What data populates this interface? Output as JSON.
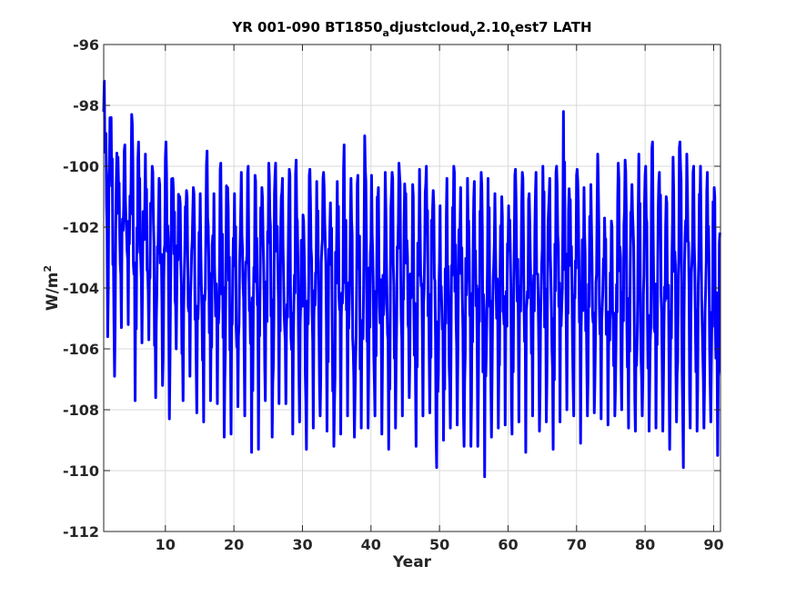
{
  "colors": {
    "series": "#0000ff",
    "grid": "#d9d9d9",
    "axis": "#262626",
    "background": "#ffffff"
  },
  "chart_data": {
    "type": "line",
    "title": {
      "part1": "YR 001-090 BT1850",
      "sub1": "a",
      "part2": "djustcloud",
      "sub2": "v",
      "part3": "2.10",
      "sub3": "t",
      "part4": "est7 LATH"
    },
    "xlabel": "Year",
    "ylabel": {
      "base": "W/m",
      "sup": "2"
    },
    "xlim": [
      1,
      91
    ],
    "ylim": [
      -112,
      -96
    ],
    "xticks": [
      10,
      20,
      30,
      40,
      50,
      60,
      70,
      80,
      90
    ],
    "yticks": [
      -112,
      -110,
      -108,
      -106,
      -104,
      -102,
      -100,
      -98,
      -96
    ],
    "xtick_labels": [
      "10",
      "20",
      "30",
      "40",
      "50",
      "60",
      "70",
      "80",
      "90"
    ],
    "ytick_labels": [
      "-112",
      "-110",
      "-108",
      "-106",
      "-104",
      "-102",
      "-100",
      "-98",
      "-96"
    ],
    "grid": true,
    "series": [
      {
        "sampling": "monthly",
        "annual_max": [
          -97.2,
          -98.4,
          -99.7,
          -99.3,
          -98.3,
          -99.2,
          -99.6,
          -100.0,
          -100.4,
          -99.2,
          -100.4,
          -101.0,
          -100.8,
          -100.7,
          -100.9,
          -99.5,
          -100.9,
          -99.9,
          -100.7,
          -100.9,
          -100.2,
          -100.0,
          -100.3,
          -100.7,
          -99.9,
          -99.9,
          -100.4,
          -100.1,
          -99.8,
          -101.6,
          -100.1,
          -100.5,
          -100.2,
          -101.2,
          -100.5,
          -99.3,
          -100.4,
          -100.3,
          -99.0,
          -100.3,
          -100.7,
          -100.2,
          -100.2,
          -99.9,
          -100.9,
          -100.6,
          -100.1,
          -100.0,
          -100.8,
          -101.3,
          -100.4,
          -100.0,
          -100.7,
          -100.4,
          -100.5,
          -100.2,
          -100.4,
          -100.9,
          -101.0,
          -101.3,
          -100.1,
          -100.2,
          -100.9,
          -100.2,
          -100.0,
          -100.4,
          -100.0,
          -98.2,
          -101.1,
          -100.1,
          -100.7,
          -100.6,
          -99.6,
          -101.7,
          -101.8,
          -99.9,
          -99.8,
          -100.6,
          -99.6,
          -100.0,
          -99.2,
          -100.2,
          -101.0,
          -99.7,
          -99.2,
          -99.6,
          -100.0,
          -100.0,
          -100.2,
          -100.7
        ],
        "annual_min": [
          -105.6,
          -106.9,
          -105.3,
          -105.2,
          -107.7,
          -105.8,
          -105.7,
          -107.6,
          -107.2,
          -108.3,
          -106.0,
          -107.7,
          -106.9,
          -108.1,
          -108.4,
          -107.7,
          -107.8,
          -108.9,
          -108.8,
          -107.9,
          -108.2,
          -109.4,
          -109.3,
          -107.7,
          -108.9,
          -107.8,
          -107.8,
          -108.8,
          -108.4,
          -109.3,
          -108.6,
          -108.2,
          -108.7,
          -109.2,
          -108.8,
          -108.2,
          -108.9,
          -108.6,
          -108.6,
          -108.2,
          -108.8,
          -109.3,
          -108.6,
          -108.2,
          -107.6,
          -109.2,
          -108.2,
          -108.1,
          -109.9,
          -109.0,
          -108.6,
          -108.5,
          -109.2,
          -109.2,
          -109.2,
          -110.2,
          -108.9,
          -108.6,
          -108.5,
          -108.8,
          -108.4,
          -109.4,
          -108.2,
          -108.7,
          -108.4,
          -109.3,
          -108.4,
          -108.0,
          -108.2,
          -109.1,
          -108.2,
          -108.1,
          -108.3,
          -108.5,
          -108.2,
          -108.0,
          -108.6,
          -108.7,
          -108.2,
          -108.7,
          -108.6,
          -108.7,
          -109.3,
          -108.4,
          -109.9,
          -108.6,
          -108.7,
          -108.6,
          -108.4,
          -109.5
        ]
      }
    ]
  }
}
